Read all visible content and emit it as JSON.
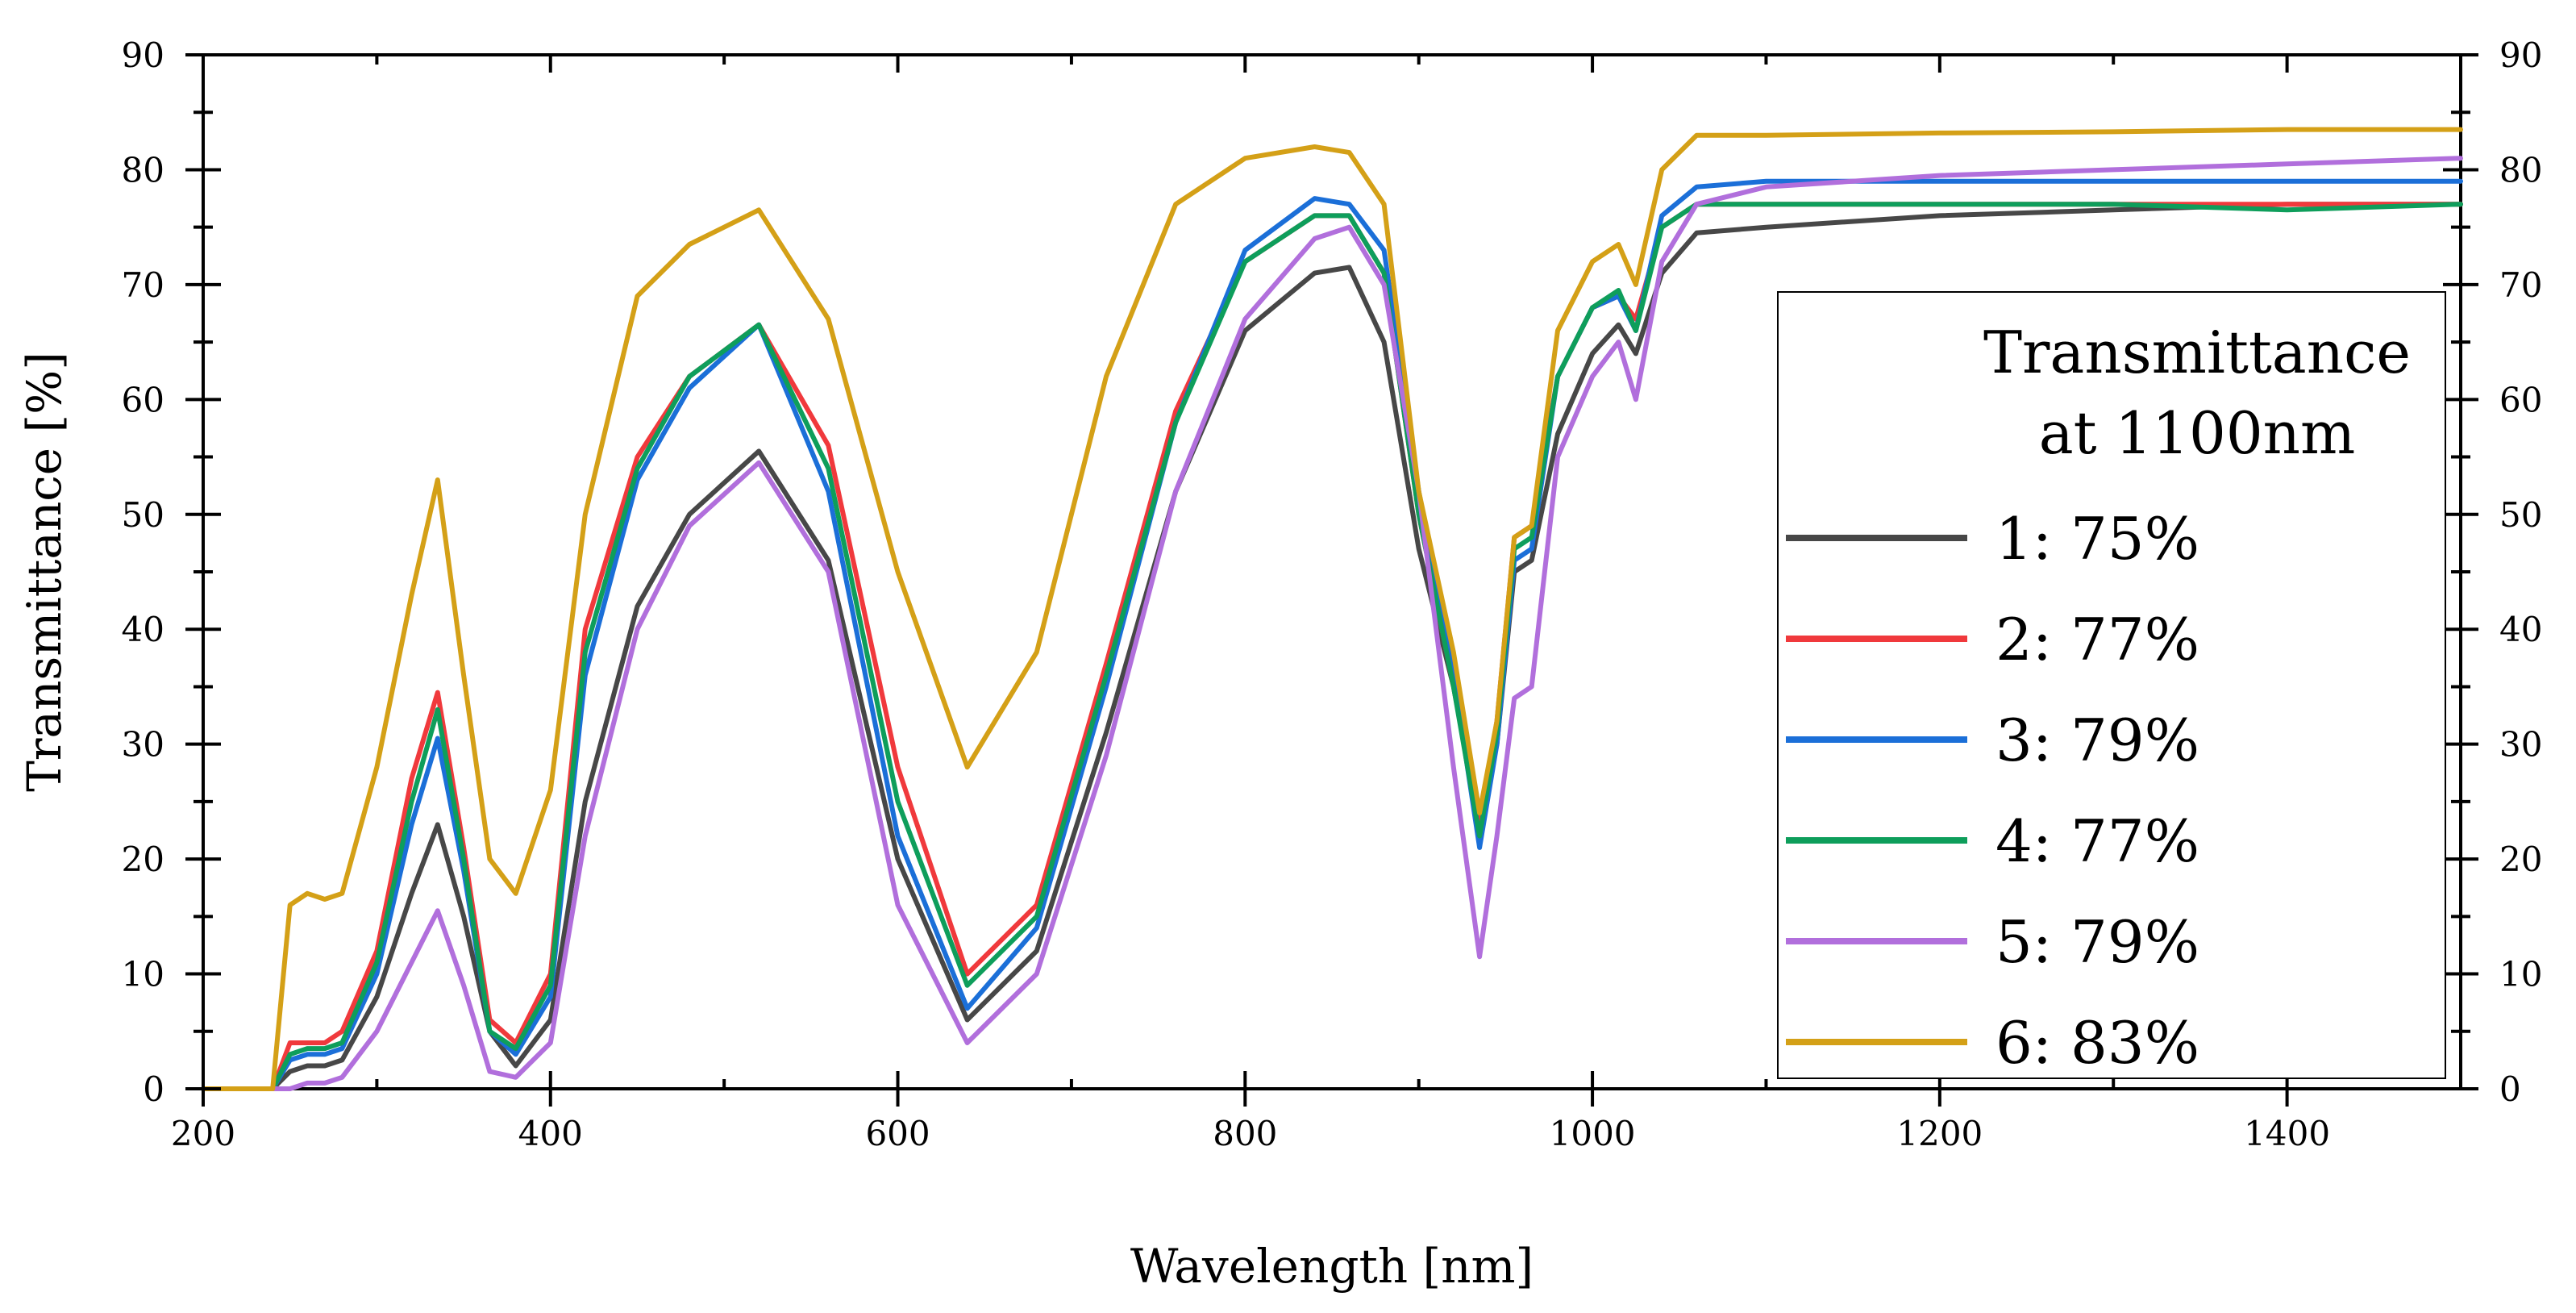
{
  "chart_data": {
    "type": "line",
    "xlabel": "Wavelength [nm]",
    "ylabel": "Transmittance [%]",
    "xlim": [
      200,
      1500
    ],
    "ylim": [
      0,
      90
    ],
    "x_ticks": [
      "200",
      "400",
      "600",
      "800",
      "1000",
      "1200",
      "1400"
    ],
    "y_ticks": [
      "0",
      "10",
      "20",
      "30",
      "40",
      "50",
      "60",
      "70",
      "80",
      "90"
    ],
    "right_axis_mirrored": true,
    "legend": {
      "title_line1": "Transmittance",
      "title_line2": "at 1100nm",
      "placement": "right"
    },
    "series": [
      {
        "name": "1: 75%",
        "color": "#474747",
        "x": [
          200,
          230,
          240,
          250,
          260,
          270,
          280,
          300,
          320,
          335,
          350,
          365,
          380,
          400,
          420,
          450,
          480,
          520,
          560,
          600,
          640,
          680,
          720,
          760,
          800,
          840,
          860,
          880,
          900,
          920,
          935,
          945,
          955,
          965,
          980,
          1000,
          1015,
          1025,
          1040,
          1060,
          1100,
          1200,
          1300,
          1400,
          1500
        ],
        "y": [
          0,
          0,
          0,
          1.5,
          2,
          2,
          2.5,
          8,
          17,
          23,
          15,
          5,
          2,
          6,
          25,
          42,
          50,
          55.5,
          46,
          20,
          6,
          12,
          31,
          52,
          66,
          71,
          71.5,
          65,
          47,
          35,
          23,
          30,
          45,
          46,
          57,
          64,
          66.5,
          64,
          71,
          74.5,
          75,
          76,
          76.5,
          77,
          77
        ]
      },
      {
        "name": "2: 77%",
        "color": "#f0393c",
        "x": [
          200,
          230,
          240,
          250,
          260,
          270,
          280,
          300,
          320,
          335,
          350,
          365,
          380,
          400,
          420,
          450,
          480,
          520,
          560,
          600,
          640,
          680,
          720,
          760,
          800,
          840,
          860,
          880,
          900,
          920,
          935,
          945,
          955,
          965,
          980,
          1000,
          1015,
          1025,
          1040,
          1060,
          1100,
          1200,
          1300,
          1400,
          1500
        ],
        "y": [
          0,
          0,
          0,
          4,
          4,
          4,
          5,
          12,
          27,
          34.5,
          21,
          6,
          4,
          10,
          40,
          55,
          62,
          66.5,
          56,
          28,
          10,
          16,
          37,
          59,
          72,
          76,
          76,
          71,
          50,
          35,
          23,
          32,
          48,
          49,
          62,
          68,
          69,
          67,
          75,
          77,
          77,
          77,
          77,
          77,
          77
        ]
      },
      {
        "name": "3: 79%",
        "color": "#1b6fd8",
        "x": [
          200,
          230,
          240,
          250,
          260,
          270,
          280,
          300,
          320,
          335,
          350,
          365,
          380,
          400,
          420,
          450,
          480,
          520,
          560,
          600,
          640,
          680,
          720,
          760,
          800,
          840,
          860,
          880,
          900,
          920,
          935,
          945,
          955,
          965,
          980,
          1000,
          1015,
          1025,
          1040,
          1060,
          1100,
          1200,
          1300,
          1400,
          1500
        ],
        "y": [
          0,
          0,
          0,
          2.5,
          3,
          3,
          3.5,
          10,
          23,
          30.5,
          19,
          5,
          3,
          8,
          36,
          53,
          61,
          66.5,
          52,
          22,
          7,
          14,
          35,
          58,
          73,
          77.5,
          77,
          73,
          52,
          36,
          21,
          30,
          46,
          47,
          62,
          68,
          69,
          66,
          76,
          78.5,
          79,
          79,
          79,
          79,
          79
        ]
      },
      {
        "name": "4: 77%",
        "color": "#0e9e5b",
        "x": [
          200,
          230,
          240,
          250,
          260,
          270,
          280,
          300,
          320,
          335,
          350,
          365,
          380,
          400,
          420,
          450,
          480,
          520,
          560,
          600,
          640,
          680,
          720,
          760,
          800,
          840,
          860,
          880,
          900,
          920,
          935,
          945,
          955,
          965,
          980,
          1000,
          1015,
          1025,
          1040,
          1060,
          1100,
          1200,
          1300,
          1400,
          1500
        ],
        "y": [
          0,
          0,
          0,
          3,
          3.5,
          3.5,
          4,
          11,
          25,
          33,
          20,
          5,
          3.5,
          9,
          38,
          54,
          62,
          66.5,
          54,
          25,
          9,
          15,
          36,
          58,
          72,
          76,
          76,
          71,
          50,
          35,
          22,
          31,
          47,
          48,
          62,
          68,
          69.5,
          66,
          75,
          77,
          77,
          77,
          77,
          76.5,
          77
        ]
      },
      {
        "name": "5: 79%",
        "color": "#b16fdc",
        "x": [
          200,
          230,
          240,
          250,
          260,
          270,
          280,
          300,
          320,
          335,
          350,
          365,
          380,
          400,
          420,
          450,
          480,
          520,
          560,
          600,
          640,
          680,
          720,
          760,
          800,
          840,
          860,
          880,
          900,
          920,
          935,
          945,
          955,
          965,
          980,
          1000,
          1015,
          1025,
          1040,
          1060,
          1100,
          1200,
          1300,
          1400,
          1500
        ],
        "y": [
          0,
          0,
          0,
          0,
          0.5,
          0.5,
          1,
          5,
          11,
          15.5,
          9,
          1.5,
          1,
          4,
          22,
          40,
          49,
          54.5,
          45,
          16,
          4,
          10,
          29,
          52,
          67,
          74,
          75,
          70,
          52,
          28,
          11.5,
          22,
          34,
          35,
          55,
          62,
          65,
          60,
          72,
          77,
          78.5,
          79.5,
          80,
          80.5,
          81
        ]
      },
      {
        "name": "6: 83%",
        "color": "#d4a017",
        "x": [
          200,
          230,
          240,
          250,
          260,
          270,
          280,
          300,
          320,
          335,
          350,
          365,
          380,
          400,
          420,
          450,
          480,
          520,
          560,
          600,
          640,
          680,
          720,
          760,
          800,
          840,
          860,
          880,
          900,
          920,
          935,
          945,
          955,
          965,
          980,
          1000,
          1015,
          1025,
          1040,
          1060,
          1100,
          1200,
          1300,
          1400,
          1500
        ],
        "y": [
          0,
          0,
          0,
          16,
          17,
          16.5,
          17,
          28,
          43,
          53,
          36,
          20,
          17,
          26,
          50,
          69,
          73.5,
          76.5,
          67,
          45,
          28,
          38,
          62,
          77,
          81,
          82,
          81.5,
          77,
          52,
          38,
          24,
          32,
          48,
          49,
          66,
          72,
          73.5,
          70,
          80,
          83,
          83,
          83.2,
          83.3,
          83.5,
          83.5
        ]
      }
    ]
  }
}
